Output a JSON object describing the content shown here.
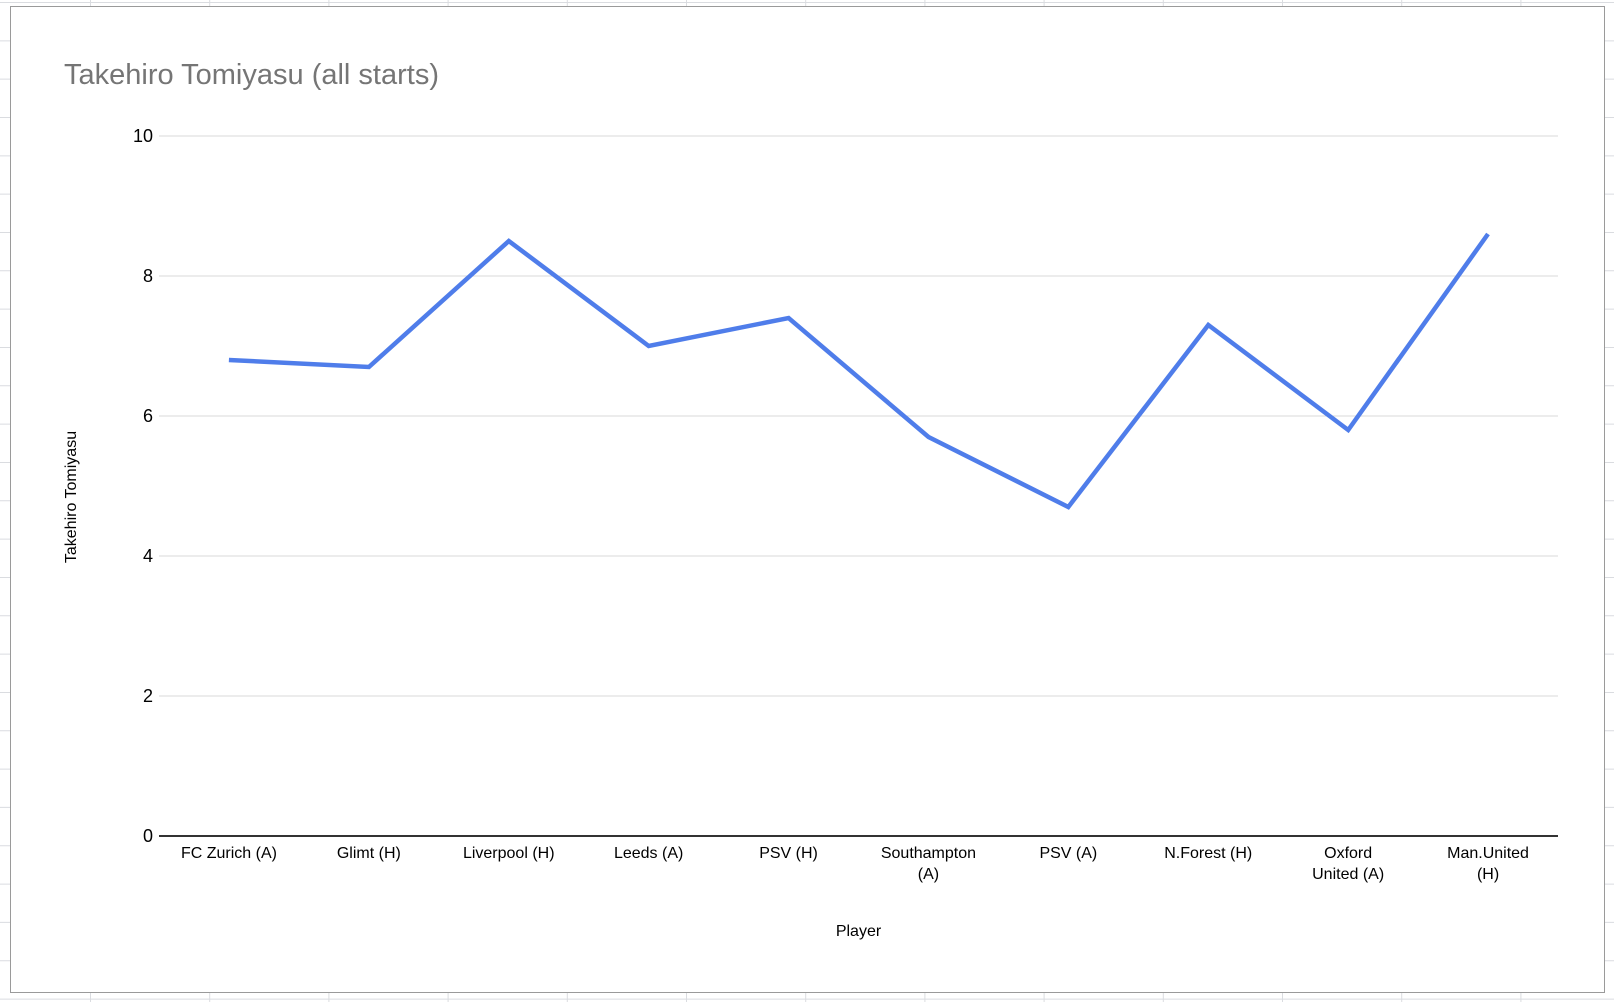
{
  "chart": {
    "title": "Takehiro Tomiyasu (all starts)",
    "x_axis_title": "Player",
    "y_axis_title": "Takehiro Tomiyasu"
  },
  "chart_data": {
    "type": "line",
    "title": "Takehiro Tomiyasu (all starts)",
    "xlabel": "Player",
    "ylabel": "Takehiro Tomiyasu",
    "categories": [
      "FC Zurich (A)",
      "Glimt (H)",
      "Liverpool (H)",
      "Leeds (A)",
      "PSV (H)",
      "Southampton (A)",
      "PSV (A)",
      "N.Forest (H)",
      "Oxford United (A)",
      "Man.United (H)"
    ],
    "category_display": [
      "FC Zurich (A)",
      "Glimt (H)",
      "Liverpool (H)",
      "Leeds (A)",
      "PSV (H)",
      "Southampton\n(A)",
      "PSV (A)",
      "N.Forest (H)",
      "Oxford\nUnited (A)",
      "Man.United\n(H)"
    ],
    "series": [
      {
        "name": "Takehiro Tomiyasu",
        "values": [
          6.8,
          6.7,
          8.5,
          7.0,
          7.4,
          5.7,
          4.7,
          7.3,
          5.8,
          8.6
        ]
      }
    ],
    "ylim": [
      0,
      10
    ],
    "y_ticks": [
      0,
      2,
      4,
      6,
      8,
      10
    ],
    "grid": true,
    "legend": "none"
  },
  "colors": {
    "series_line": "#4f7dea",
    "chart_title": "#757575",
    "gridline": "#d9d9d9",
    "axis_line": "#333333",
    "panel_border": "#9a9a9a",
    "sheet_gridline": "#dadce0",
    "text": "#000000"
  }
}
